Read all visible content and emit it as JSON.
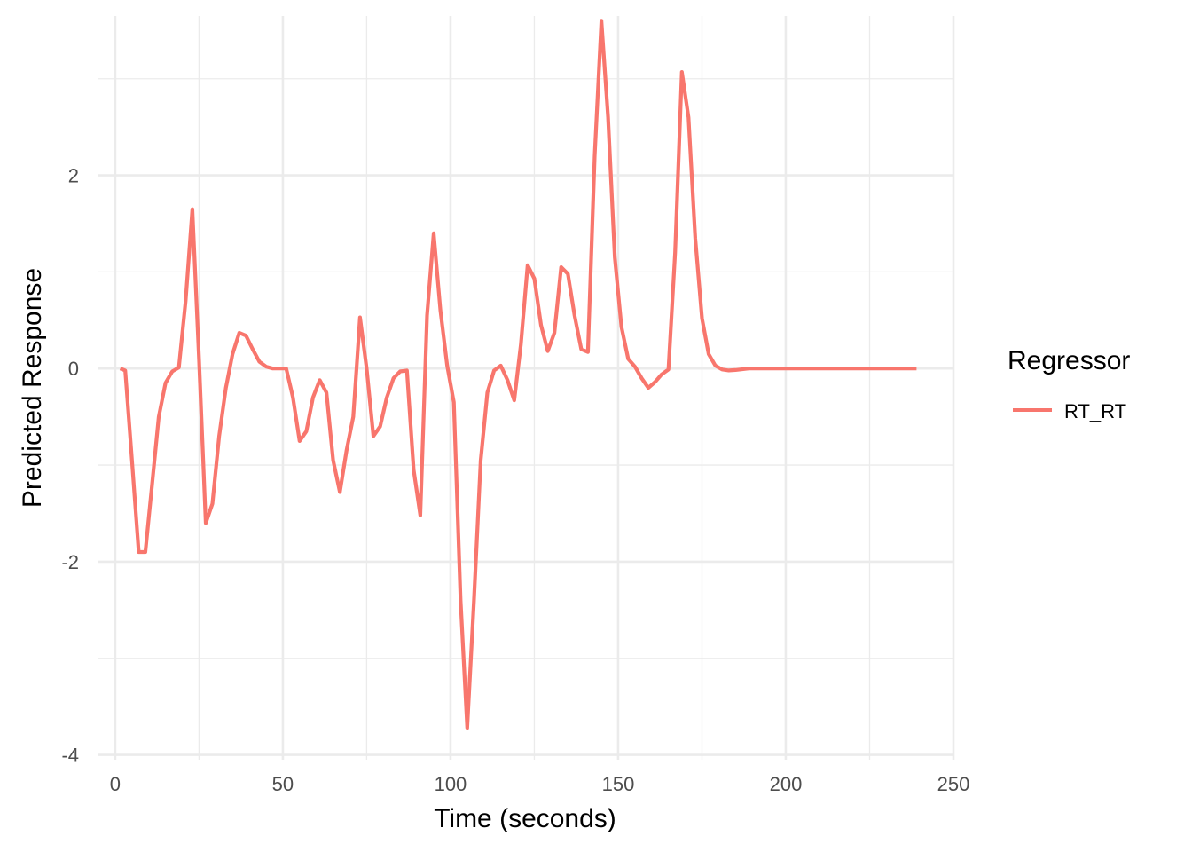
{
  "chart_data": {
    "type": "line",
    "xlabel": "Time (seconds)",
    "ylabel": "Predicted Response",
    "xlim": [
      -5,
      250
    ],
    "ylim": [
      -4.05,
      3.65
    ],
    "x_ticks": [
      0,
      50,
      100,
      150,
      200,
      250
    ],
    "x_tick_labels": [
      "0",
      "50",
      "100",
      "150",
      "200",
      "250"
    ],
    "y_ticks": [
      -4,
      -2,
      0,
      2
    ],
    "y_tick_labels": [
      "-4",
      "-2",
      "0",
      "2"
    ],
    "x_minor_ticks": [
      25,
      75,
      125,
      175,
      225
    ],
    "y_minor_ticks": [
      -3,
      -1,
      1,
      3
    ],
    "grid": true,
    "legend": {
      "title": "Regressor",
      "position": "right"
    },
    "series": [
      {
        "name": "RT_RT",
        "color": "#F8766D",
        "x": [
          1.5,
          3,
          5,
          7,
          9,
          11,
          13,
          15,
          17,
          19,
          21,
          23,
          25,
          27,
          29,
          31,
          33,
          35,
          37,
          39,
          41,
          43,
          45,
          47,
          49,
          51,
          53,
          55,
          57,
          59,
          61,
          63,
          65,
          67,
          69,
          71,
          73,
          75,
          77,
          79,
          81,
          83,
          85,
          87,
          89,
          91,
          93,
          95,
          97,
          99,
          101,
          103,
          105,
          107,
          109,
          111,
          113,
          115,
          117,
          119,
          121,
          123,
          125,
          127,
          129,
          131,
          133,
          135,
          137,
          139,
          141,
          143,
          145,
          147,
          149,
          151,
          153,
          155,
          157,
          159,
          161,
          163,
          165,
          167,
          169,
          171,
          173,
          175,
          177,
          179,
          181,
          183,
          185,
          189,
          195,
          200,
          210,
          220,
          230,
          239
        ],
        "y": [
          0,
          -0.02,
          -0.95,
          -1.9,
          -1.9,
          -1.2,
          -0.5,
          -0.15,
          -0.03,
          0.01,
          0.7,
          1.65,
          0.1,
          -1.6,
          -1.4,
          -0.7,
          -0.2,
          0.15,
          0.37,
          0.34,
          0.2,
          0.07,
          0.02,
          0,
          0,
          0,
          -0.3,
          -0.75,
          -0.65,
          -0.3,
          -0.12,
          -0.25,
          -0.95,
          -1.28,
          -0.85,
          -0.5,
          0.53,
          0,
          -0.7,
          -0.6,
          -0.3,
          -0.1,
          -0.03,
          -0.02,
          -1.05,
          -1.52,
          0.55,
          1.4,
          0.6,
          0.03,
          -0.35,
          -2.4,
          -3.72,
          -2.4,
          -0.95,
          -0.25,
          -0.02,
          0.03,
          -0.12,
          -0.33,
          0.25,
          1.07,
          0.93,
          0.45,
          0.18,
          0.37,
          1.05,
          0.98,
          0.55,
          0.2,
          0.17,
          2.2,
          3.6,
          2.6,
          1.15,
          0.43,
          0.1,
          0.02,
          -0.1,
          -0.2,
          -0.14,
          -0.06,
          -0.01,
          1.2,
          3.07,
          2.6,
          1.35,
          0.52,
          0.15,
          0.03,
          -0.01,
          -0.02,
          -0.015,
          0,
          0,
          0,
          0,
          0,
          0,
          0
        ]
      }
    ]
  }
}
